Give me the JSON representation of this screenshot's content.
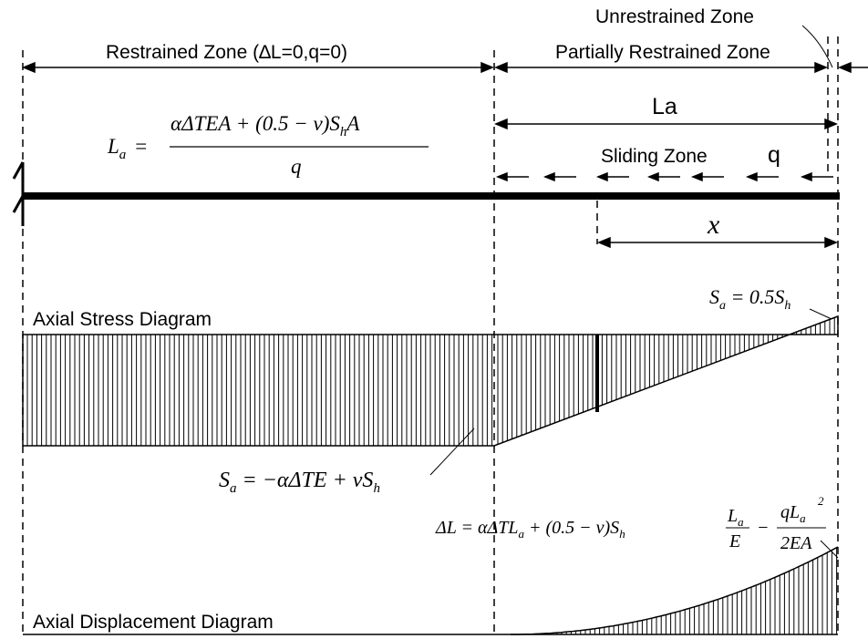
{
  "zones": {
    "restrained": "Restrained Zone (∆L=0,q=0)",
    "partially_restrained": "Partially Restrained Zone",
    "unrestrained": "Unrestrained Zone",
    "la": "La",
    "sliding": "Sliding Zone",
    "q": "q",
    "x": "x"
  },
  "equations": {
    "la_lhs_var": "L",
    "la_lhs_sub": "a",
    "la_eq": "=",
    "la_num_a": "αΔTEA + (0.5 − ν)S",
    "la_num_sub": "h",
    "la_num_b": "A",
    "la_den": "q",
    "sa_top_var": "S",
    "sa_top_sub": "a",
    "sa_top_mid": " = 0.5S",
    "sa_top_sub2": "h",
    "sa_bot_var": "S",
    "sa_bot_sub": "a",
    "sa_bot_mid": " = −αΔTE + νS",
    "sa_bot_sub2": "h",
    "dl_a": "ΔL = αΔTL",
    "dl_sub1": "a",
    "dl_b": " + (0.5 − ν)S",
    "dl_sub2": "h",
    "dl_f1_num": "L",
    "dl_f1_num_sub": "a",
    "dl_f1_den": "E",
    "dl_minus": "−",
    "dl_f2_num": "qL",
    "dl_f2_num_sub": "a",
    "dl_f2_num_sup": "2",
    "dl_f2_den": "2EA"
  },
  "diagrams": {
    "stress": "Axial Stress Diagram",
    "displacement": "Axial Displacement Diagram"
  },
  "colors": {
    "ink": "#000000",
    "background": "#ffffff"
  }
}
